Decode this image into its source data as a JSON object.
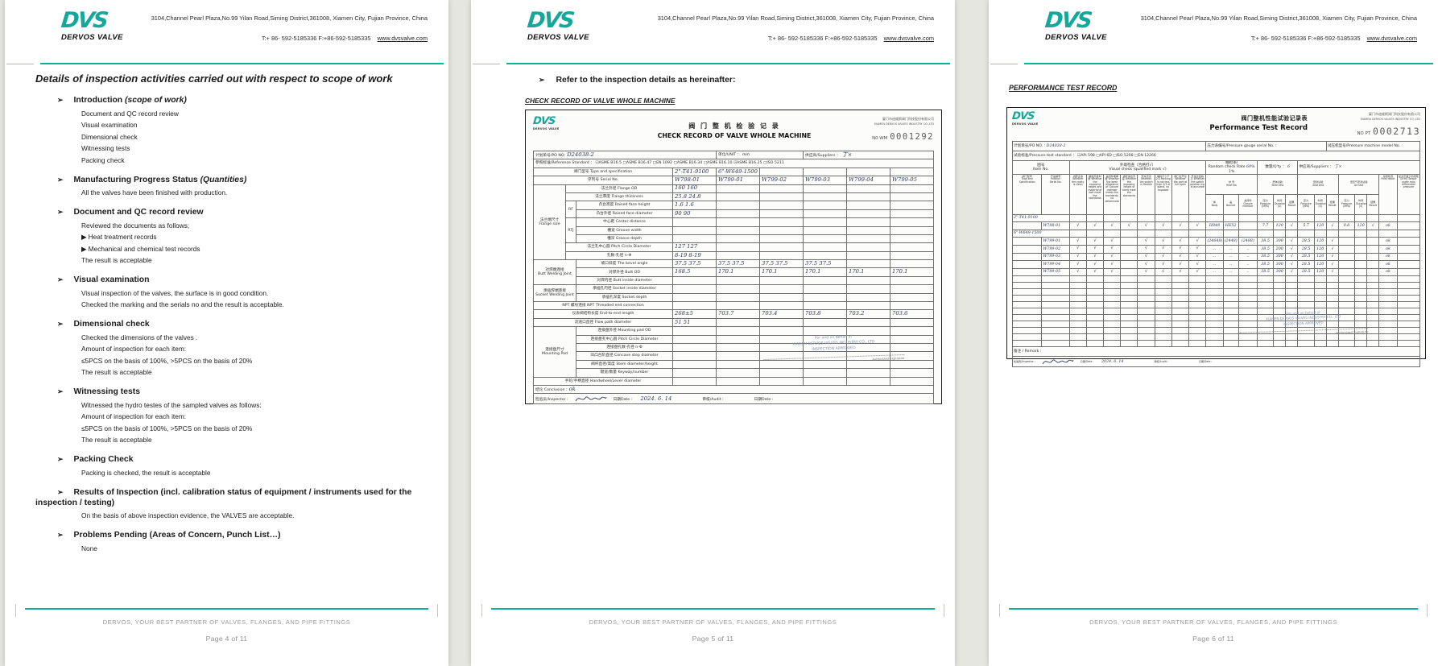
{
  "glyphs": {
    "arrow": "➢",
    "sub_bullet": "▶",
    "check": "√"
  },
  "colors": {
    "brand_teal": "#12a89a",
    "rule_teal": "#0fae9f",
    "footer_gray": "#9a9a9a",
    "ink_blue": "#2a3550"
  },
  "header": {
    "logo_text": "DVS",
    "logo_sub": "DERVOS VALVE",
    "address": "3104,Channel Pearl Plaza,No.99 Yilan Road,Siming District,361008, Xiamen City, Fujian Province, China",
    "phone": "T:+ 86- 592-5185336 F:+86-592-5185335",
    "website": "www.dvsvalve.com"
  },
  "footer": {
    "tagline": "DERVOS, YOUR BEST PARTNER OF VALVES,  FLANGES, AND PIPE FITTINGS",
    "pages": [
      "Page 4 of 11",
      "Page 5 of 11",
      "Page 6 of 11"
    ]
  },
  "page4": {
    "title": "Details of inspection activities carried out with respect to scope of work",
    "sections": [
      {
        "title": "Introduction",
        "suffix": " (scope of work)",
        "lines": [
          "Document and QC record  review",
          "Visual examination",
          "Dimensional check",
          "Witnessing tests",
          "Packing check"
        ]
      },
      {
        "title": "Manufacturing Progress Status",
        "suffix": " (Quantities)",
        "lines": [
          "All the valves have  been finished with production."
        ]
      },
      {
        "title": "Document and QC record review",
        "lines": [
          "Reviewed the documents as follows;",
          "▶ Heat treatment records",
          "▶ Mechanical and chemical test records",
          "The result is acceptable"
        ]
      },
      {
        "title": "Visual examination",
        "lines": [
          "Visual inspection of the valves, the surface is in good condition.",
          "Checked the marking and the serials no and the result is acceptable."
        ]
      },
      {
        "title": "Dimensional check",
        "lines": [
          "Checked the dimensions of the valves .",
          "Amount of inspection  for each item:",
          "≤5PCS on the basis of 100%,   >5PCS on the basis of 20%",
          "The result is acceptable"
        ]
      },
      {
        "title": "Witnessing tests",
        "lines": [
          "Witnessed the hydro testes of the sampled valves as follows:",
          "Amount of inspection  for each item:",
          "≤5PCS on the basis of 100%,   >5PCS on the basis of 20%",
          "The result is acceptable"
        ]
      },
      {
        "title": "Packing Check",
        "lines": [
          "Packing is checked, the result is acceptable"
        ]
      },
      {
        "title": "Results of Inspection (incl. calibration status of equipment / instruments used for the inspection / testing)",
        "lines": [
          "On the basis of above inspection  evidence, the VALVES are acceptable."
        ]
      },
      {
        "title": "Problems Pending  (Areas of Concern, Punch List…)",
        "lines": [
          "None"
        ]
      }
    ]
  },
  "page5": {
    "heading": "Refer to the inspection details as hereinafter:",
    "subheading": "CHECK RECORD OF VALVE WHOLE MACHINE",
    "scan": {
      "company_cn": "厦门市迪维斯阀门科技股份有限公司",
      "company_en": "XIAMEN DERVOS VALVES INDUSTRY CO.,LTD",
      "no_label": "N0  WM",
      "no_value": "0001292",
      "title_cn": "阀 门 整 机 检 验 记 录",
      "title_en": "CHECK RECORD OF VALVE  WHOLE MACHINE",
      "po_label": "计划单号/PO NO:",
      "po_value": "D24038-2",
      "unit_label": "单位/UNIT ：",
      "unit_value": "mm",
      "supplier_label": "供应商/Suppliers ：",
      "supplier_value": "丁×",
      "std_label": "参照标准/Reference Standard ：",
      "std_options": "☑ASME B16.5    □ASME B16.47    □EN 1092    □ASME B16.34    □ASME B16.10    ☑ASME B16.25    □ISO 5211",
      "type_label": "阀门型号  Type and specification",
      "type_values": [
        "2\"-T41-9100",
        "6\"-W649-1500",
        "",
        "",
        "",
        ""
      ],
      "serial_label": "序列号 Serial No.",
      "serial_values": [
        "W798-01",
        "W799-01",
        "W799-02",
        "W799-03",
        "W799-04",
        "W799-05"
      ],
      "dim_rows": [
        {
          "g": "法兰端尺寸\nFlange size",
          "gcs": 1,
          "grs": 9,
          "l": "法兰外径 Flange OD",
          "lsp": 2,
          "v": [
            "160  160"
          ]
        },
        {
          "l": "法兰厚度 Flange thickness",
          "lsp": 2,
          "v": [
            "25.8  24.8"
          ]
        },
        {
          "s": "RF",
          "srs": 2,
          "l": "凸台高度 Raised face height",
          "lsp": 1,
          "v": [
            "1.6  1.6"
          ]
        },
        {
          "l": "凸台外径 Raised face diameter",
          "lsp": 1,
          "v": [
            "90  90"
          ]
        },
        {
          "s": "RTJ",
          "srs": 3,
          "l": "中心距 Center distance",
          "lsp": 1,
          "v": []
        },
        {
          "l": "槽宽 Groove width",
          "lsp": 1,
          "v": []
        },
        {
          "l": "槽深 Groove depth",
          "lsp": 1,
          "v": []
        },
        {
          "l": "法兰孔中心圆 Pitch Circle Diameter",
          "lsp": 2,
          "v": [
            "127  127"
          ]
        },
        {
          "l": "孔数-孔径 n-Φ",
          "lsp": 2,
          "v": [
            "8-19  8-19"
          ]
        },
        {
          "g": "对焊端连接\nButt Welding Joint",
          "gcs": 2,
          "grs": 3,
          "l": "坡口斜度 The bevel angle",
          "lsp": 1,
          "v": [
            "37.5  37.5",
            "37.5  37.5",
            "37.5  37.5",
            "37.5  37.5"
          ]
        },
        {
          "l": "对焊外径 Butt OD",
          "lsp": 1,
          "v": [
            "168.5",
            "170.1",
            "170.1",
            "170.1",
            "170.1",
            "170.1"
          ]
        },
        {
          "l": "对焊内径 Butt inside diameter",
          "lsp": 1,
          "v": []
        },
        {
          "g": "承插焊端连接\nSocket Welding Joint",
          "gcs": 2,
          "grs": 2,
          "l": "承插孔内径 Socket inside diameter",
          "lsp": 1,
          "v": []
        },
        {
          "l": "承插孔深度 Socket depth",
          "lsp": 1,
          "v": []
        },
        {
          "l": "NPT 螺纹连接  NPT Threaded end connection",
          "lsp": 3,
          "v": []
        },
        {
          "l": "仪表阀结构长度 End-to-end length",
          "lsp": 3,
          "v": [
            "268±5",
            "703.7",
            "703.4",
            "703.8",
            "703.2",
            "703.6"
          ]
        },
        {
          "l": "流道口直径 Flow path diameter",
          "lsp": 3,
          "v": [
            "51  51"
          ]
        },
        {
          "g": "连接盘尺寸\nMounting Pad",
          "gcs": 2,
          "grs": 6,
          "l": "连接盘外径 Mounting pad OD",
          "lsp": 1,
          "v": []
        },
        {
          "l": "连接盘孔中心圆 Pitch Circle Diameter",
          "lsp": 1,
          "v": []
        },
        {
          "l": "连接盘孔数-孔径 n-Φ",
          "lsp": 1,
          "v": []
        },
        {
          "l": "凹凸台阶直径 Concave step diameter",
          "lsp": 1,
          "v": []
        },
        {
          "l": "阀杆直径/高度 Stem diameter/height",
          "lsp": 1,
          "v": []
        },
        {
          "l": "键宽/数量 Keyway/number",
          "lsp": 1,
          "v": []
        },
        {
          "l": "手轮/手柄直径 Handwheel/Lever diameter",
          "lsp": 3,
          "v": []
        }
      ],
      "conclusion_label": "结论 Conclusion :",
      "conclusion_value": "ok",
      "inspector_label": "检验员/Inspector :",
      "date_label": "日期Date :",
      "date_value": "2024. 6. 14",
      "audit_label": "审核/Audit :",
      "date2_label": "日期Date :",
      "stamp_lines": [
        "For and on behalf of",
        "XIAMEN DERVOS VALVES INDUSTRY CO., LTD",
        "INSPECTION  APPROVED"
      ],
      "stamp_sig": "Authorized Signature"
    }
  },
  "page6": {
    "heading": "PERFORMANCE TEST RECORD",
    "scan": {
      "company_cn": "厦门市迪维斯阀门科技股份有限公司",
      "company_en": "XIAMEN DERVOS VALVES INDUSTRY CO.,LTD",
      "no_label": "NO  PT",
      "no_value": "0002713",
      "title_cn": "阀门整机性能试验记录表",
      "title_en": "Performance Test Record",
      "po_label": "计划单号/PO NO. :",
      "po_value": "D24038-2",
      "gauge_label": "压力表编号/Pressure gauge serial No. :",
      "machine_label": "试压机型号/Pressure machine model No. :",
      "std_label": "试验标准/Pressure test standard ：",
      "std_options": "☑API 598        □API 6D        □ISO 5208        □EN 12266",
      "item_label": "图号\nItem No.",
      "visual_label": "外观检查（合格打√）\nVisual check (qualified mark √)",
      "rate_label": "抽检率/\nRandom check Rate ",
      "rate_value": "60%",
      "rate_note": " 1%",
      "qty_label": "数量/Q'ty ：",
      "qty_value": "6",
      "supplier_label": "供应商/Suppliers ：",
      "supplier_value": "丁×",
      "col_type": "阀门型号\nType and\nSpecification",
      "col_serial": "产品编号\nProduct\nSerial No.",
      "visual_cols": [
        "内腔清洁 Whether the cavity is clean",
        "螺栓高度材质 Whether the exposing height and material of bolt meet the standards",
        "关闭件堆焊层 Whether the wear allowance of Closure member meets the standards, no delaminate",
        "阀杆露出高度 Whether the exposing height of stem meet the standards",
        "开关灵活 Whether the switch is flexible",
        "填料不少于2/3 Packing is not less than 2/3 of gland, no exposed",
        "阀门全开位 Whether the port at full open",
        "开关位置指示 Whether the switch position ing is accurate"
      ],
      "heat_label": "炉 号\nHeat No.",
      "heat_cols": [
        "体\nBody",
        "盖\nBonnet",
        "关闭件\nClosure member"
      ],
      "shell_label": "壳体试验\nShell test",
      "seat_label": "密封试验\nSeat test",
      "air_label": "低压气密封试验\nAir test",
      "ptd_cols": [
        "压力\nPressure\n(MPa)",
        "时间\nDuration\n(S)",
        "结果\nResult"
      ],
      "final_label": "最终检查\nFinal result",
      "torque_label": "最大压差下的扭矩 (N·m) Torque under max differential pressure",
      "groups": [
        {
          "type": "2\"-T41-9100",
          "rows": [
            {
              "serial": "W798-01",
              "checks": [
                "√",
                "√",
                "√",
                "√",
                "√",
                "√",
                "√",
                "√"
              ],
              "heat": [
                "H848",
                "HE52",
                ""
              ],
              "shell": [
                "7.7",
                "120",
                "√"
              ],
              "seat": [
                "5.7",
                "120",
                "√"
              ],
              "air": [
                "0.6",
                "120",
                "√"
              ],
              "final": "ok",
              "torque": ""
            }
          ]
        },
        {
          "type": "6\"-W649-1500",
          "rows": [
            {
              "serial": "W799-01",
              "checks": [
                "√",
                "√",
                "√",
                "",
                "√",
                "√",
                "√",
                "√"
              ],
              "heat": [
                "(24648)",
                "(2448)",
                "(2488)"
              ],
              "shell": [
                "38.5",
                "300",
                "√"
              ],
              "seat": [
                "28.5",
                "120",
                "√"
              ],
              "air": [
                "",
                "",
                ""
              ],
              "final": "ok",
              "torque": ""
            },
            {
              "serial": "W799-02",
              "checks": [
                "√",
                "√",
                "√",
                "",
                "√",
                "√",
                "√",
                "√"
              ],
              "heat": [
                "..",
                "..",
                ".."
              ],
              "shell": [
                "38.5",
                "200",
                "√"
              ],
              "seat": [
                "28.5",
                "120",
                "√"
              ],
              "air": [
                "",
                "",
                ""
              ],
              "final": "ok",
              "torque": ""
            },
            {
              "serial": "W799-03",
              "checks": [
                "√",
                "√",
                "√",
                "",
                "√",
                "√",
                "√",
                "√"
              ],
              "heat": [
                "..",
                "..",
                ".."
              ],
              "shell": [
                "38.5",
                "300",
                "√"
              ],
              "seat": [
                "28.5",
                "120",
                "√"
              ],
              "air": [
                "",
                "",
                ""
              ],
              "final": "ok",
              "torque": ""
            },
            {
              "serial": "W799-04",
              "checks": [
                "√",
                "√",
                "√",
                "",
                "√",
                "√",
                "√",
                "√"
              ],
              "heat": [
                "..",
                "..",
                ".."
              ],
              "shell": [
                "38.5",
                "300",
                "√"
              ],
              "seat": [
                "28.5",
                "120",
                "√"
              ],
              "air": [
                "",
                "",
                ""
              ],
              "final": "ok",
              "torque": ""
            },
            {
              "serial": "W799-05",
              "checks": [
                "√",
                "√",
                "√",
                "",
                "√",
                "√",
                "√",
                "√"
              ],
              "heat": [
                "..",
                "..",
                ".."
              ],
              "shell": [
                "38.5",
                "300",
                "√"
              ],
              "seat": [
                "28.5",
                "120",
                "√"
              ],
              "air": [
                "",
                "",
                ""
              ],
              "final": "ok",
              "torque": ""
            }
          ]
        }
      ],
      "empty_row_count": 11,
      "remark_label": "备注 / Remark :",
      "inspector_label": "检验员/Inspector :",
      "date_label": "日期/Date :",
      "date_value": "2024. 6. 14",
      "audit_label": "审核/Audit :",
      "date2_label": "日期/Date :",
      "stamp_lines": [
        "For and on behalf of",
        "XIAMEN DERVOS VALVES INDUSTRY CO., LTD",
        "INSPECTION  APPROVED"
      ],
      "stamp_sig": "Authorized Signature"
    }
  }
}
